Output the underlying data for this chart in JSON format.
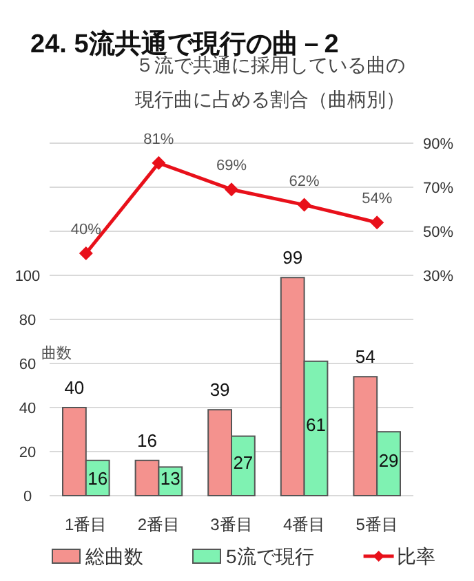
{
  "chart_data": {
    "type": "bar",
    "title": "24. 5流共通で現行の曲－2",
    "subtitle": "５流で共通に採用している曲の現行曲に占める割合（曲柄別）",
    "ylabel": "曲数",
    "categories": [
      "1番目",
      "2番目",
      "3番目",
      "4番目",
      "5番目"
    ],
    "series": [
      {
        "name": "総曲数",
        "color": "#f4928e",
        "values": [
          40,
          16,
          39,
          99,
          54
        ],
        "value_labels": [
          "40",
          "16",
          "39",
          "99",
          "54"
        ]
      },
      {
        "name": "5流で現行",
        "color": "#7ff2b2",
        "values": [
          16,
          13,
          27,
          61,
          29
        ],
        "value_labels": [
          "16",
          "13",
          "27",
          "61",
          "29"
        ]
      },
      {
        "name": "比率",
        "type": "line",
        "axis": "y2",
        "color": "#e8101a",
        "marker": "diamond",
        "values": [
          40,
          81,
          69,
          62,
          54
        ],
        "value_labels": [
          "40%",
          "81%",
          "69%",
          "62%",
          "54%"
        ]
      }
    ],
    "ylim": [
      0,
      160
    ],
    "yticks": [
      0,
      20,
      40,
      60,
      80,
      100
    ],
    "y2lim": [
      -70,
      90
    ],
    "y2ticks": [
      {
        "value": 30,
        "label": "30%"
      },
      {
        "value": 50,
        "label": "50%"
      },
      {
        "value": 70,
        "label": "70%"
      },
      {
        "value": 90,
        "label": "90%"
      }
    ],
    "grid": true,
    "legend": "bottom"
  }
}
